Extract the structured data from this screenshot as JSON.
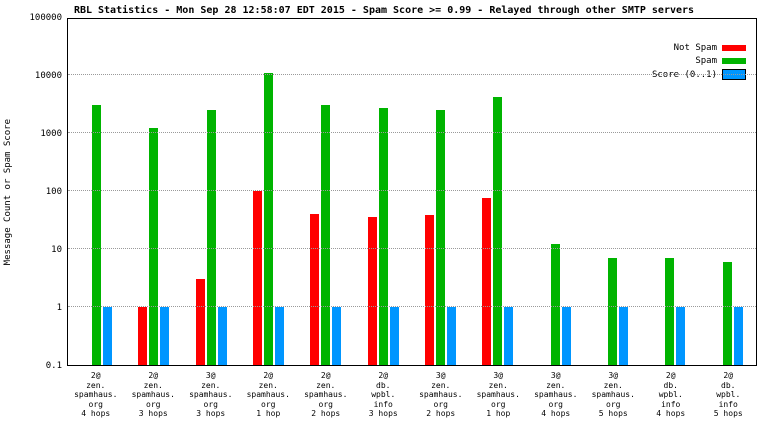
{
  "title": "RBL Statistics - Mon Sep 28 12:58:07 EDT 2015 - Spam Score >= 0.99 - Relayed through other SMTP servers",
  "ylabel": "Message Count or Spam Score",
  "legend": [
    {
      "label": "Not Spam",
      "color": "#ff0000"
    },
    {
      "label": "Spam",
      "color": "#00b400"
    },
    {
      "label": "Score (0..1)",
      "color": "#0096ff"
    }
  ],
  "chart_data": {
    "type": "bar",
    "yscale": "log",
    "ylim": [
      0.1,
      100000
    ],
    "yticks": [
      "100000",
      "10000",
      "1000",
      "100",
      "10",
      "1",
      "0.1"
    ],
    "grid": true,
    "legend_position": "top-right",
    "categories": [
      [
        "2@",
        "zen.",
        "spamhaus.",
        "org",
        "4 hops"
      ],
      [
        "2@",
        "zen.",
        "spamhaus.",
        "org",
        "3 hops"
      ],
      [
        "3@",
        "zen.",
        "spamhaus.",
        "org",
        "3 hops"
      ],
      [
        "2@",
        "zen.",
        "spamhaus.",
        "org",
        "1 hop"
      ],
      [
        "2@",
        "zen.",
        "spamhaus.",
        "org",
        "2 hops"
      ],
      [
        "2@",
        "db.",
        "wpbl.",
        "info",
        "3 hops"
      ],
      [
        "3@",
        "zen.",
        "spamhaus.",
        "org",
        "2 hops"
      ],
      [
        "3@",
        "zen.",
        "spamhaus.",
        "org",
        "1 hop"
      ],
      [
        "3@",
        "zen.",
        "spamhaus.",
        "org",
        "4 hops"
      ],
      [
        "3@",
        "zen.",
        "spamhaus.",
        "org",
        "5 hops"
      ],
      [
        "2@",
        "db.",
        "wpbl.",
        "info",
        "4 hops"
      ],
      [
        "2@",
        "db.",
        "wpbl.",
        "info",
        "5 hops"
      ]
    ],
    "series": [
      {
        "name": "Not Spam",
        "color": "#ff0000",
        "values": [
          null,
          1,
          3,
          100,
          40,
          35,
          38,
          75,
          null,
          null,
          null,
          null
        ]
      },
      {
        "name": "Spam",
        "color": "#00b400",
        "values": [
          3000,
          1200,
          2500,
          11000,
          3000,
          2700,
          2500,
          4200,
          12,
          7,
          7,
          6
        ]
      },
      {
        "name": "Score (0..1)",
        "color": "#0096ff",
        "values": [
          1,
          1,
          1,
          1,
          1,
          1,
          1,
          1,
          1,
          1,
          1,
          1
        ]
      }
    ]
  }
}
